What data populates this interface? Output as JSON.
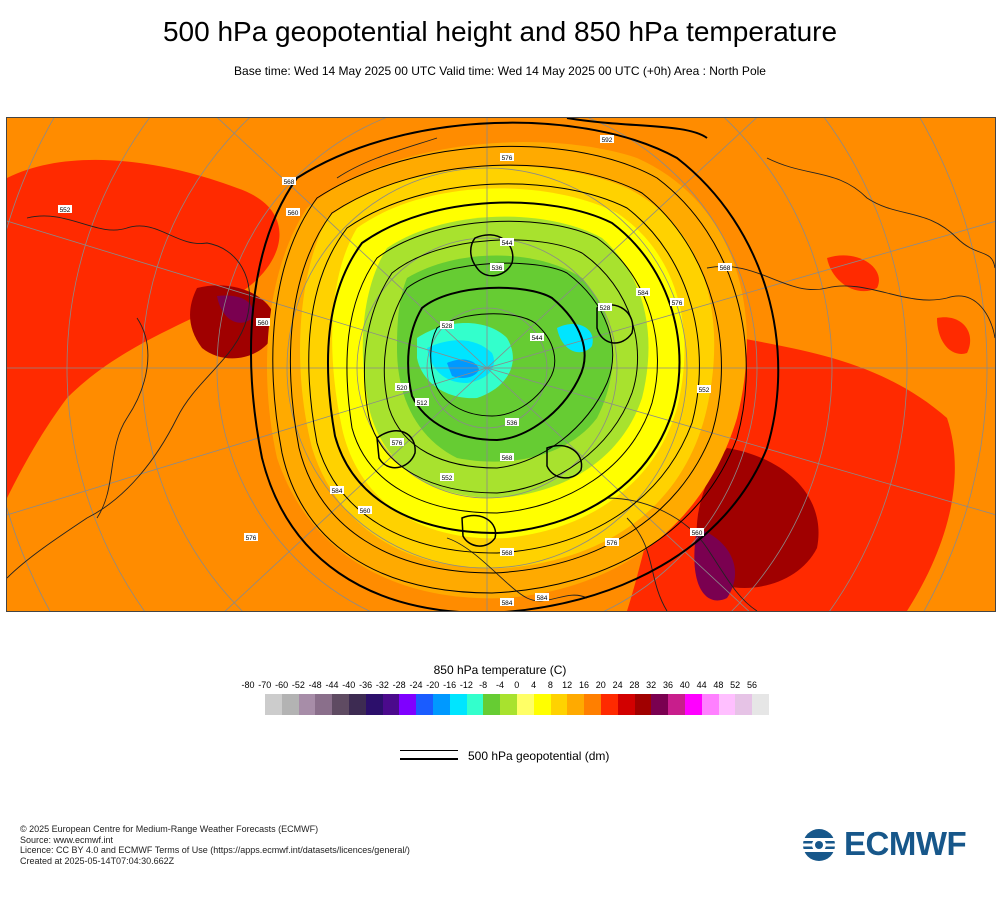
{
  "title": "500 hPa geopotential height and 850 hPa temperature",
  "subtitle": "Base time: Wed 14 May 2025 00 UTC Valid time: Wed 14 May 2025 00 UTC (+0h) Area : North Pole",
  "map": {
    "contour_labels": [
      "592",
      "576",
      "568",
      "560",
      "552",
      "544",
      "536",
      "528",
      "520",
      "512",
      "576",
      "584",
      "560",
      "552",
      "568",
      "536",
      "544",
      "528",
      "584",
      "576",
      "568",
      "552",
      "560",
      "576",
      "568",
      "584",
      "584",
      "576",
      "560"
    ]
  },
  "legend": {
    "title": "850 hPa temperature (C)",
    "ticks": [
      "-80",
      "-70",
      "-60",
      "-52",
      "-48",
      "-44",
      "-40",
      "-36",
      "-32",
      "-28",
      "-24",
      "-20",
      "-16",
      "-12",
      "-8",
      "-4",
      "0",
      "4",
      "8",
      "12",
      "16",
      "20",
      "24",
      "28",
      "32",
      "36",
      "40",
      "44",
      "48",
      "52",
      "56"
    ],
    "colors": [
      "#e6e6e6",
      "#cccccc",
      "#b3b3b3",
      "#a78da8",
      "#8a6f8b",
      "#5f4b62",
      "#3d2b52",
      "#2c0f6b",
      "#4b0a8c",
      "#7f00ff",
      "#1a5cff",
      "#0099ff",
      "#00e5ff",
      "#33ffcc",
      "#66cc33",
      "#a8e22e",
      "#ffff66",
      "#ffff00",
      "#ffd200",
      "#ffaa00",
      "#ff7f00",
      "#ff2a00",
      "#d20000",
      "#a00000",
      "#7a0050",
      "#c81e8c",
      "#ff00ff",
      "#ff80ff",
      "#ffbfff",
      "#e6c3e6",
      "#e6e6e6"
    ],
    "geopotential_label": "500 hPa geopotential (dm)"
  },
  "footer": {
    "line1": "© 2025 European Centre for Medium-Range Weather Forecasts (ECMWF)",
    "line2": "Source: www.ecmwf.int",
    "line3": "Licence: CC BY 4.0 and ECMWF Terms of Use (https://apps.ecmwf.int/datasets/licences/general/)",
    "line4": "Created at 2025-05-14T07:04:30.662Z"
  },
  "logo": {
    "text": "ECMWF",
    "color": "#17578a"
  }
}
